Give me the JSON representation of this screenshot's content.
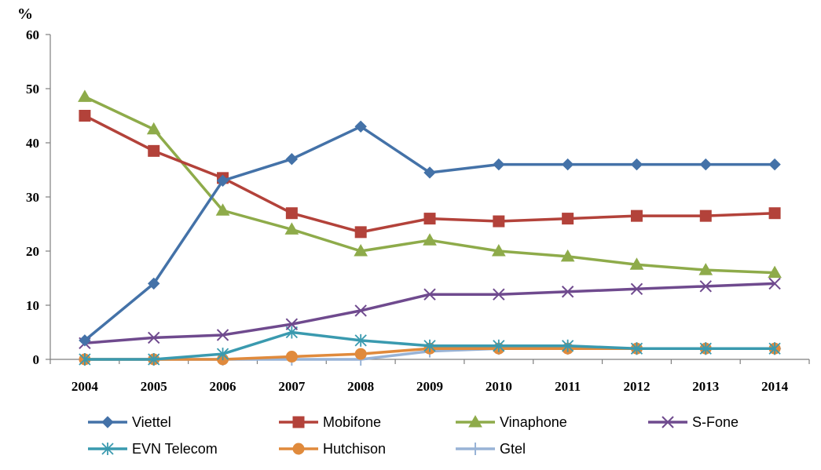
{
  "chart_data": {
    "type": "line",
    "unit_label": "%",
    "x": [
      "2004",
      "2005",
      "2006",
      "2007",
      "2008",
      "2009",
      "2010",
      "2011",
      "2012",
      "2013",
      "2014"
    ],
    "ylim": [
      0,
      60
    ],
    "yticks": [
      "0",
      "10",
      "20",
      "30",
      "40",
      "50",
      "60"
    ],
    "grid": false,
    "legend_position": "bottom",
    "series": [
      {
        "name": "Viettel",
        "color": "#4472A8",
        "marker": "diamond",
        "values": [
          3.5,
          14,
          33,
          37,
          43,
          34.5,
          36,
          36,
          36,
          36,
          36
        ]
      },
      {
        "name": "Mobifone",
        "color": "#B3423A",
        "marker": "square",
        "values": [
          45,
          38.5,
          33.5,
          27,
          23.5,
          26,
          25.5,
          26,
          26.5,
          26.5,
          27
        ]
      },
      {
        "name": "Vinaphone",
        "color": "#8EAB4A",
        "marker": "triangle",
        "values": [
          48.5,
          42.5,
          27.5,
          24,
          20,
          22,
          20,
          19,
          17.5,
          16.5,
          16
        ]
      },
      {
        "name": "S-Fone",
        "color": "#6F4A8E",
        "marker": "x",
        "values": [
          3,
          4,
          4.5,
          6.5,
          9,
          12,
          12,
          12.5,
          13,
          13.5,
          14
        ]
      },
      {
        "name": "EVN Telecom",
        "color": "#3A9AAF",
        "marker": "asterisk",
        "values": [
          0,
          0,
          1,
          5,
          3.5,
          2.5,
          2.5,
          2.5,
          2,
          2,
          2
        ]
      },
      {
        "name": "Hutchison",
        "color": "#E08A3C",
        "marker": "circle",
        "values": [
          0,
          0,
          0,
          0.5,
          1,
          2,
          2,
          2,
          2,
          2,
          2
        ]
      },
      {
        "name": "Gtel",
        "color": "#98B3D6",
        "marker": "plus",
        "values": [
          0,
          0,
          0,
          0,
          0,
          1.5,
          2,
          2,
          2,
          2,
          2
        ]
      }
    ]
  }
}
